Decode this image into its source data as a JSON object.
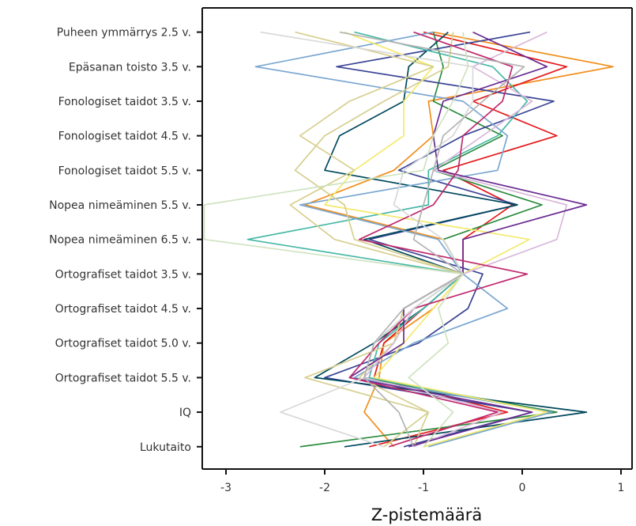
{
  "chart_data": {
    "type": "line",
    "orientation": "horizontal",
    "title": "",
    "xlabel": "Z-pistemäärä",
    "ylabel": "",
    "xlim": [
      -3.22,
      1.15
    ],
    "x_ticks": [
      -3,
      -2,
      -1,
      0,
      1
    ],
    "x_tick_labels": [
      "-3",
      "-2",
      "-1",
      "0",
      "1"
    ],
    "categories": [
      "Puheen ymmärrys 2.5 v.",
      "Epäsanan toisto 3.5 v.",
      "Fonologiset taidot 3.5 v.",
      "Fonologiset taidot 4.5 v.",
      "Fonologiset taidot 5.5 v.",
      "Nopea nimeäminen 5.5 v.",
      "Nopea nimeäminen 6.5 v.",
      "Ortografiset taidot 3.5 v.",
      "Ortografiset taidot 4.5 v.",
      "Ortografiset taidot 5.0 v.",
      "Ortografiset taidot 5.5 v.",
      "IQ",
      "Lukutaito"
    ],
    "grid": false,
    "legend": "none",
    "series": [
      {
        "color": "#f28e1c",
        "values": [
          -0.9,
          0.92,
          -0.95,
          -0.9,
          -1.3,
          -2.2,
          -0.8,
          -0.6,
          -0.9,
          -1.4,
          -1.45,
          -1.6,
          -1.3
        ]
      },
      {
        "color": "#e41a1c",
        "values": [
          -1.0,
          0.45,
          -0.5,
          0.35,
          -0.8,
          -0.1,
          -0.6,
          -0.6,
          -1.0,
          -1.4,
          -1.5,
          -0.15,
          -1.55
        ]
      },
      {
        "color": "#2b8c3e",
        "values": [
          -0.9,
          -0.8,
          -0.9,
          -0.2,
          -0.9,
          0.2,
          -0.8,
          -0.6,
          -1.1,
          -1.5,
          -1.6,
          0.35,
          -2.25
        ]
      },
      {
        "color": "#3b4495",
        "values": [
          0.08,
          -1.88,
          0.32,
          -0.6,
          -1.25,
          -0.05,
          -1.55,
          -0.4,
          -0.55,
          -1.05,
          -2.0,
          0.1,
          -1.2
        ]
      },
      {
        "color": "#00495c",
        "values": [
          -0.75,
          -1.15,
          -1.2,
          -1.85,
          -2.0,
          -0.05,
          -1.6,
          -0.6,
          -1.0,
          -1.5,
          -2.1,
          0.65,
          -1.8
        ]
      },
      {
        "color": "#46b8a6",
        "values": [
          -1.7,
          -0.3,
          0.05,
          -0.25,
          -0.95,
          -0.95,
          -2.78,
          -0.6,
          -1.0,
          -1.45,
          -1.55,
          0.28,
          -1.0
        ]
      },
      {
        "color": "#7ba7d0",
        "values": [
          -0.9,
          -2.7,
          -0.6,
          -0.15,
          -0.25,
          -2.25,
          -0.85,
          -0.6,
          -0.15,
          -1.1,
          -1.7,
          0.3,
          -0.95
        ]
      },
      {
        "color": "#f3ea6c",
        "values": [
          -1.8,
          -0.9,
          -1.2,
          -1.2,
          -1.7,
          -2.0,
          0.07,
          -0.6,
          -0.9,
          -1.2,
          -1.5,
          0.25,
          -1.0
        ]
      },
      {
        "color": "#d8cf8f",
        "values": [
          -2.3,
          -0.9,
          -1.75,
          -2.25,
          -1.7,
          -2.35,
          -1.9,
          -0.6,
          -1.2,
          -1.3,
          -1.65,
          -0.95,
          -1.1
        ]
      },
      {
        "color": "#d6cf90",
        "values": [
          -0.7,
          -0.75,
          -1.4,
          -2.0,
          -2.3,
          -1.8,
          -1.7,
          -0.6,
          -1.2,
          -1.3,
          -2.2,
          -0.95,
          -1.4
        ]
      },
      {
        "color": "#d9b8d9",
        "values": [
          0.25,
          -0.5,
          0.1,
          -0.4,
          -0.9,
          0.45,
          0.35,
          -0.6,
          -1.1,
          -1.3,
          -1.6,
          -0.2,
          -1.1
        ]
      },
      {
        "color": "#6a2c91",
        "values": [
          -0.5,
          0.25,
          -0.8,
          -0.9,
          -0.85,
          0.65,
          -0.6,
          -0.6,
          -1.2,
          -1.2,
          -1.75,
          0.1,
          -1.15
        ]
      },
      {
        "color": "#c02a6e",
        "values": [
          -1.1,
          -0.1,
          -0.2,
          -0.6,
          -0.65,
          -0.9,
          -1.65,
          0.05,
          -1.1,
          -1.45,
          -1.75,
          -0.25,
          -1.35
        ]
      },
      {
        "color": "#d9d9d9",
        "values": [
          -2.65,
          -0.5,
          -0.5,
          -0.7,
          -1.2,
          -1.3,
          -0.8,
          -0.6,
          -1.1,
          -1.5,
          -1.6,
          -2.45,
          -1.4
        ]
      },
      {
        "color": "#b3b3b3",
        "values": [
          -1.85,
          0.02,
          -0.4,
          -0.8,
          -0.9,
          -1.0,
          -1.1,
          -0.6,
          -1.2,
          -1.5,
          -1.6,
          -1.25,
          -1.1
        ]
      },
      {
        "color": "#cfe3c0",
        "values": [
          -0.6,
          -0.55,
          -0.7,
          -0.9,
          -1.0,
          -3.22,
          -3.22,
          -0.6,
          -0.85,
          -0.75,
          -1.15,
          -0.7,
          -1.0
        ]
      }
    ]
  }
}
